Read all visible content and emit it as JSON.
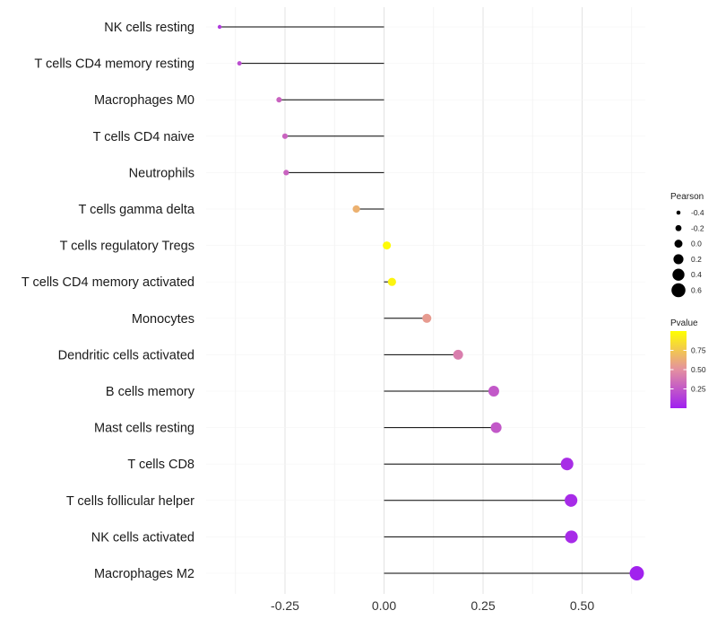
{
  "chart_data": {
    "type": "lollipop",
    "title": "",
    "xlabel": "",
    "ylabel": "",
    "xlim": [
      -0.45,
      0.68
    ],
    "x_ticks": [
      -0.25,
      0.0,
      0.25,
      0.5
    ],
    "x_tick_labels": [
      "-0.25",
      "0.00",
      "0.25",
      "0.50"
    ],
    "grid": true,
    "categories": [
      "NK cells resting",
      "T cells CD4 memory resting",
      "Macrophages M0",
      "T cells CD4 naive",
      "Neutrophils",
      "T cells gamma delta",
      "T cells regulatory  Tregs ",
      "T cells CD4 memory activated",
      "Monocytes",
      "Dendritic cells activated",
      "B cells memory",
      "Mast cells resting",
      "T cells CD8",
      "T cells follicular helper",
      "NK cells activated",
      "Macrophages M2"
    ],
    "pearson": [
      -0.415,
      -0.365,
      -0.265,
      -0.25,
      -0.247,
      -0.07,
      0.007,
      0.02,
      0.108,
      0.187,
      0.277,
      0.283,
      0.462,
      0.472,
      0.473,
      0.638
    ],
    "pvalue": [
      0.12,
      0.2,
      0.3,
      0.3,
      0.3,
      0.65,
      0.98,
      0.95,
      0.55,
      0.42,
      0.25,
      0.25,
      0.06,
      0.05,
      0.05,
      0.01
    ],
    "legend": {
      "position": "right",
      "size": {
        "title": "Pearson",
        "values": [
          -0.4,
          -0.2,
          0.0,
          0.2,
          0.4,
          0.6
        ],
        "labels": [
          "-0.4",
          "-0.2",
          "0.0",
          "0.2",
          "0.4",
          "0.6"
        ]
      },
      "color": {
        "title": "Pvalue",
        "breaks": [
          0.75,
          0.5,
          0.25
        ],
        "labels": [
          "0.75",
          "0.50",
          "0.25"
        ],
        "range": [
          0.0,
          1.0
        ],
        "low_color": "#a020f0",
        "high_color": "#ffff00"
      }
    }
  }
}
